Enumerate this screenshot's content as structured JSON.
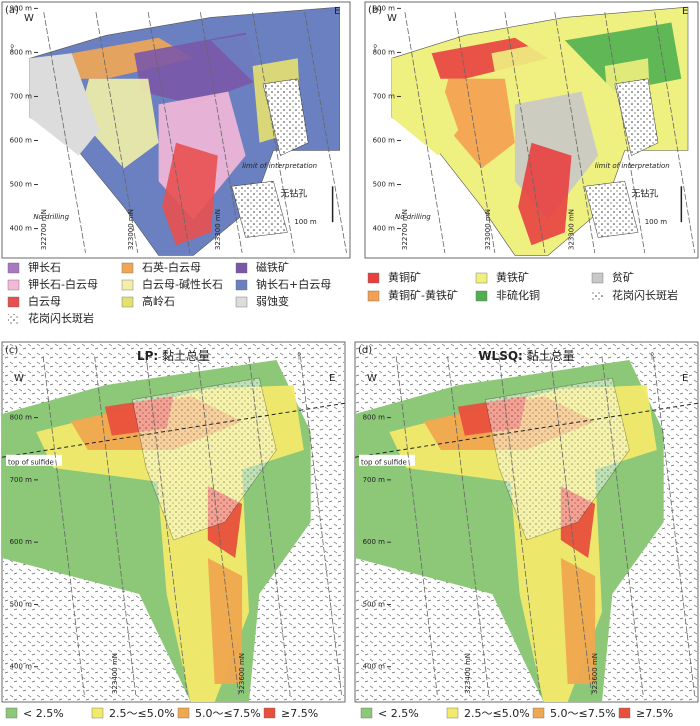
{
  "panels": [
    {
      "label": "(a)",
      "west": "W",
      "east": "E",
      "elevations": [
        "900 m",
        "800 m",
        "700 m",
        "600 m",
        "500 m",
        "400 m"
      ],
      "limit": "limit of interpretation",
      "no_drilling": "No drilling",
      "no_hole": "无钻孔",
      "scale": "100 m",
      "northings": [
        "322700 mN",
        "323000 mN",
        "323300 mN"
      ]
    },
    {
      "label": "(b)",
      "west": "W",
      "east": "E",
      "elevations": [
        "900 m",
        "800 m",
        "700 m",
        "600 m",
        "500 m",
        "400 m"
      ],
      "limit": "limit of interpretation",
      "no_drilling": "No drilling",
      "no_hole": "无钻孔",
      "scale": "100 m",
      "northings": [
        "322700 mN",
        "323000 mN",
        "323300 mN"
      ]
    },
    {
      "label": "(c)",
      "title_bold": "LP:",
      "title": "黏土总量",
      "west": "W",
      "east": "E",
      "elevations": [
        "800 m",
        "700 m",
        "600 m",
        "500 m",
        "400 m"
      ],
      "top_sulfide": "top of sulfide",
      "northings": [
        "323400 mN",
        "323600 mN"
      ]
    },
    {
      "label": "(d)",
      "title_bold": "WLSQ:",
      "title": "黏土总量",
      "west": "W",
      "east": "E",
      "elevations": [
        "800 m",
        "700 m",
        "600 m",
        "500 m",
        "400 m"
      ],
      "top_sulfide": "top of sulfide",
      "northings": [
        "323400 mN",
        "323600 mN"
      ]
    }
  ],
  "legend_a": [
    {
      "label": "钾长石",
      "color": "#a878c0"
    },
    {
      "label": "石英-白云母",
      "color": "#f2a654"
    },
    {
      "label": "磁铁矿",
      "color": "#7a58a8"
    },
    {
      "label": "钾长石-白云母",
      "color": "#f4b8d8"
    },
    {
      "label": "白云母-碱性长石",
      "color": "#f2f0a8"
    },
    {
      "label": "钠长石+白云母",
      "color": "#6a80c0"
    },
    {
      "label": "白云母",
      "color": "#e85050"
    },
    {
      "label": "高岭石",
      "color": "#e6e070"
    },
    {
      "label": "弱蚀变",
      "color": "#dcdcdc"
    },
    {
      "label": "花岗闪长斑岩",
      "color": "#ffffff"
    }
  ],
  "legend_b": [
    {
      "label": "黄铜矿",
      "color": "#e84040"
    },
    {
      "label": "黄铁矿",
      "color": "#eef080"
    },
    {
      "label": "贫矿",
      "color": "#c8c8c8"
    },
    {
      "label": "黄铜矿-黄铁矿",
      "color": "#f4a050"
    },
    {
      "label": "非硫化铜",
      "color": "#50b050"
    },
    {
      "label": "花岗闪长斑岩",
      "color": "#ffffff"
    }
  ],
  "legend_cd": [
    {
      "label": "< 2.5%",
      "color": "#8cc878"
    },
    {
      "label": "2.5～≤5.0%",
      "color": "#f2ea6a"
    },
    {
      "label": "5.0～≤7.5%",
      "color": "#f0a850"
    },
    {
      "label": "≥7.5%",
      "color": "#e8503c"
    }
  ]
}
